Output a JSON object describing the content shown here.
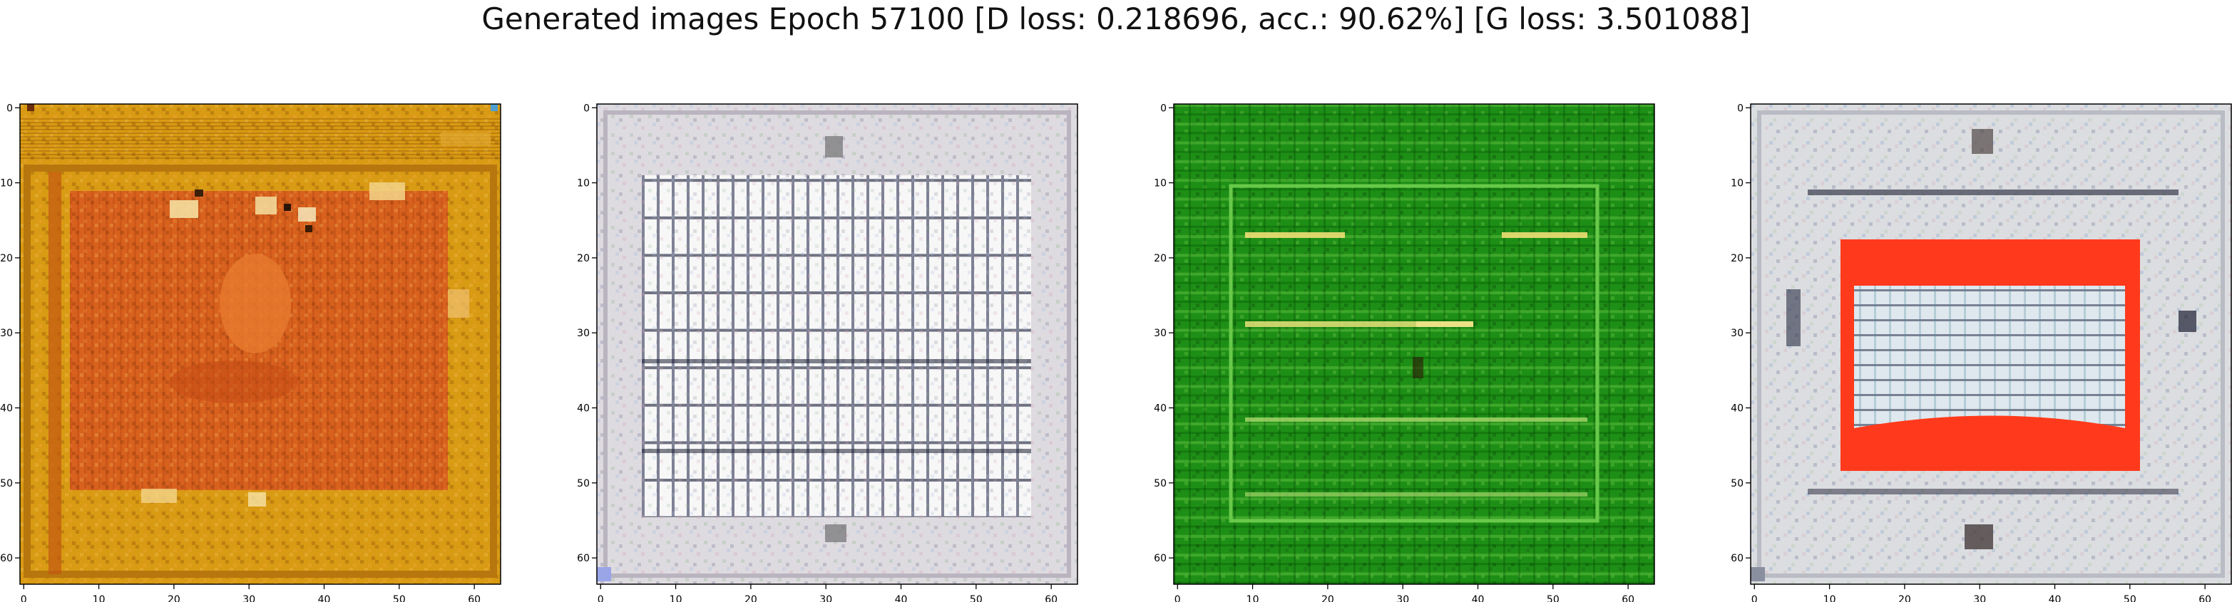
{
  "figure": {
    "title": "Generated images Epoch 57100 [D loss: 0.218696, acc.: 90.62%] [G loss: 3.501088]"
  },
  "chart_data": [
    {
      "type": "heatmap",
      "image_index": 1,
      "dominant_colors": [
        "#d99a14",
        "#d8611e",
        "#f0c070"
      ],
      "xlim": [
        0,
        63
      ],
      "ylim": [
        0,
        63
      ],
      "xticks": [
        0,
        10,
        20,
        30,
        40,
        50,
        60
      ],
      "yticks": [
        0,
        10,
        20,
        30,
        40,
        50,
        60
      ],
      "grid": false
    },
    {
      "type": "heatmap",
      "image_index": 2,
      "dominant_colors": [
        "#dedbe0",
        "#ffffff",
        "#141830"
      ],
      "xlim": [
        0,
        63
      ],
      "ylim": [
        0,
        63
      ],
      "xticks": [
        0,
        10,
        20,
        30,
        40,
        50,
        60
      ],
      "yticks": [
        0,
        10,
        20,
        30,
        40,
        50,
        60
      ],
      "grid": false
    },
    {
      "type": "heatmap",
      "image_index": 3,
      "dominant_colors": [
        "#1e8f16",
        "#38b52a",
        "#eede74"
      ],
      "xlim": [
        0,
        63
      ],
      "ylim": [
        0,
        63
      ],
      "xticks": [
        0,
        10,
        20,
        30,
        40,
        50,
        60
      ],
      "yticks": [
        0,
        10,
        20,
        30,
        40,
        50,
        60
      ],
      "grid": false
    },
    {
      "type": "heatmap",
      "image_index": 4,
      "dominant_colors": [
        "#dcdde0",
        "#ff3a1c",
        "#141830"
      ],
      "xlim": [
        0,
        63
      ],
      "ylim": [
        0,
        63
      ],
      "xticks": [
        0,
        10,
        20,
        30,
        40,
        50,
        60
      ],
      "yticks": [
        0,
        10,
        20,
        30,
        40,
        50,
        60
      ],
      "grid": false
    }
  ]
}
